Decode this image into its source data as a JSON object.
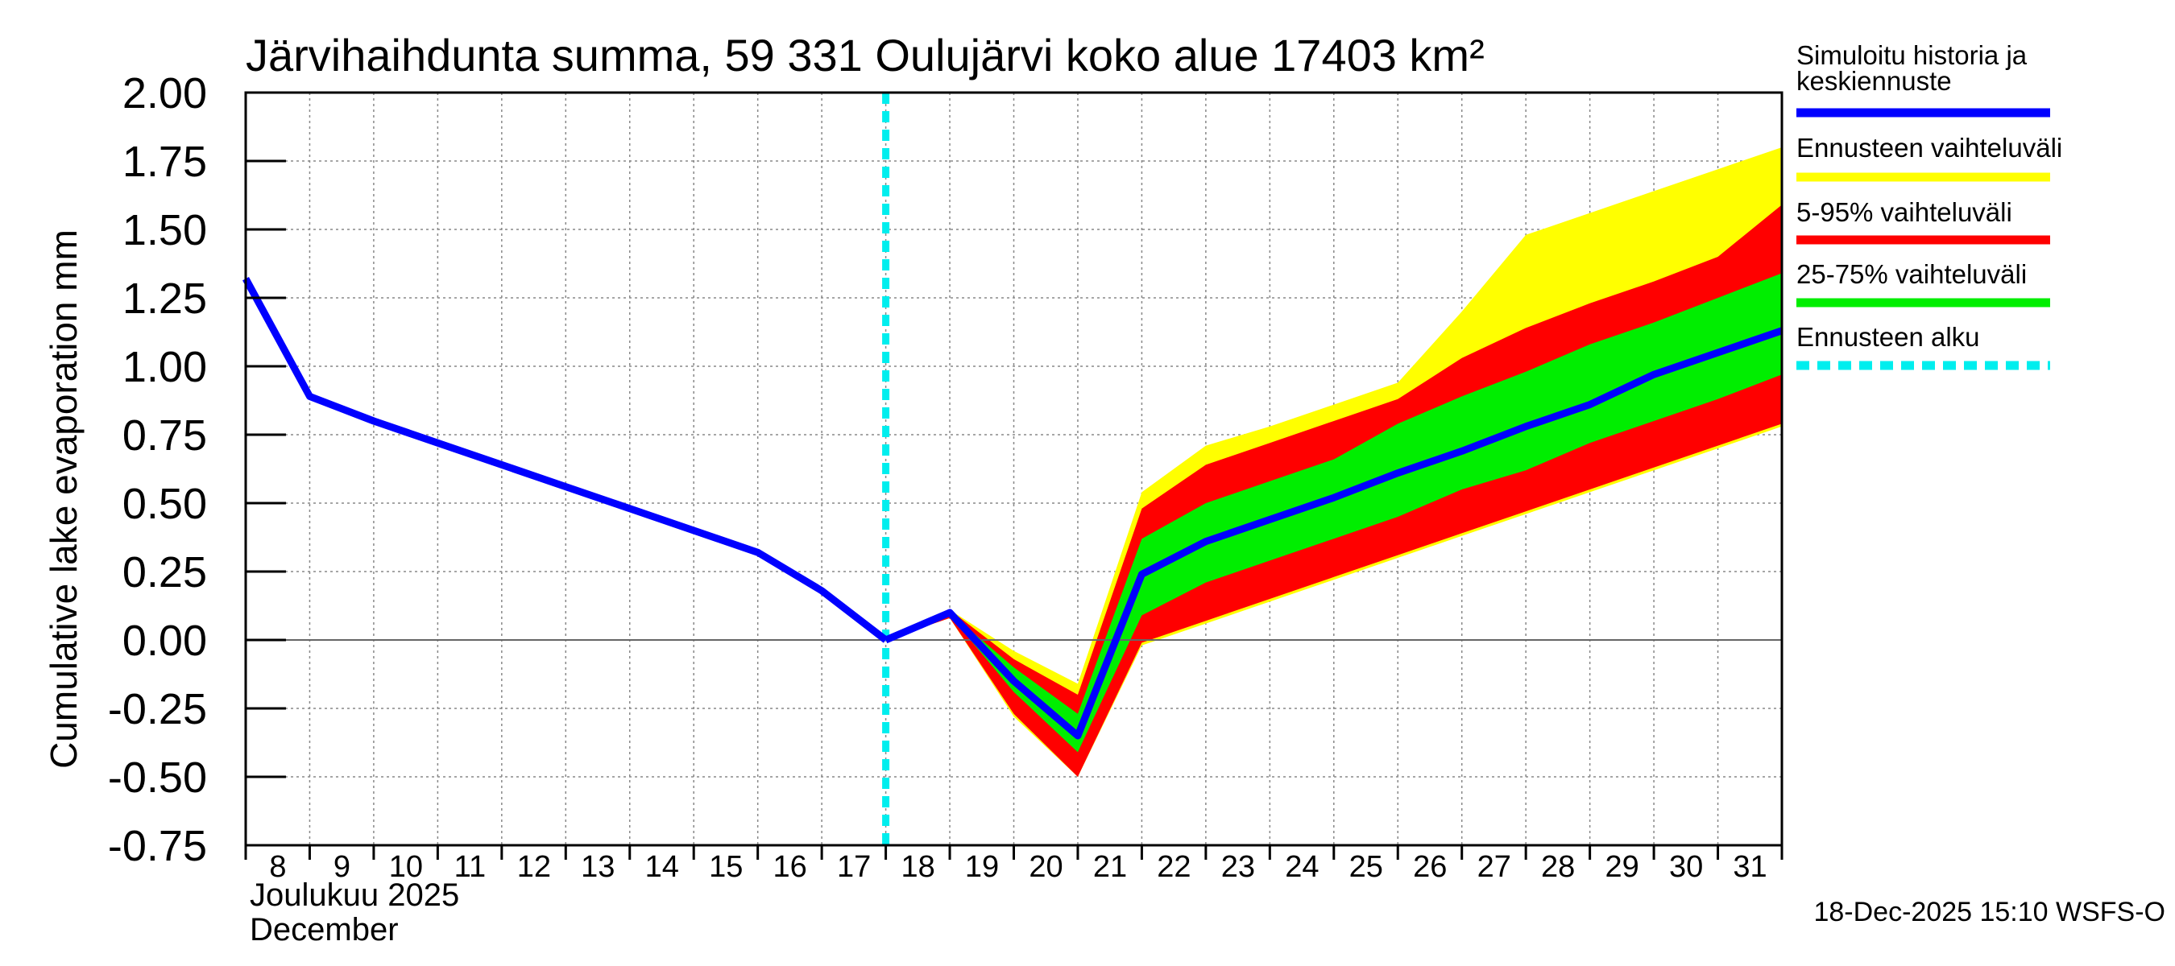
{
  "chart_data": {
    "type": "area",
    "title": "Järvihaihdunta summa, 59 331 Oulujärvi koko alue 17403 km²",
    "ylabel": "Cumulative lake evaporation   mm",
    "ylim": [
      -0.75,
      2.0
    ],
    "yticks": [
      "2.00",
      "1.75",
      "1.50",
      "1.25",
      "1.00",
      "0.75",
      "0.50",
      "0.25",
      "0.00",
      "-0.25",
      "-0.50",
      "-0.75"
    ],
    "ytick_values": [
      2.0,
      1.75,
      1.5,
      1.25,
      1.0,
      0.75,
      0.5,
      0.25,
      0.0,
      -0.25,
      -0.5,
      -0.75
    ],
    "xlim": [
      8,
      32
    ],
    "xtick_labels": [
      "8",
      "9",
      "10",
      "11",
      "12",
      "13",
      "14",
      "15",
      "16",
      "17",
      "18",
      "19",
      "20",
      "21",
      "22",
      "23",
      "24",
      "25",
      "26",
      "27",
      "28",
      "29",
      "30",
      "31"
    ],
    "month_label_fi": "Joulukuu  2025",
    "month_label_en": "December",
    "forecast_start": 18,
    "history": {
      "x": [
        8,
        9,
        10,
        11,
        12,
        13,
        14,
        15,
        16,
        17,
        18
      ],
      "y": [
        1.32,
        0.89,
        0.8,
        0.72,
        0.64,
        0.56,
        0.48,
        0.4,
        0.32,
        0.18,
        0.0
      ]
    },
    "forecast_median": {
      "x": [
        18,
        19,
        20,
        21,
        22,
        23,
        24,
        25,
        26,
        27,
        28,
        29,
        30,
        31,
        32
      ],
      "y": [
        0.0,
        0.1,
        -0.15,
        -0.35,
        0.24,
        0.36,
        0.44,
        0.52,
        0.61,
        0.69,
        0.78,
        0.86,
        0.97,
        1.05,
        1.13
      ]
    },
    "bands": [
      {
        "name": "Ennusteen vaihteluväli",
        "color": "#ffff00",
        "x": [
          18,
          19,
          20,
          21,
          22,
          23,
          24,
          25,
          26,
          27,
          28,
          29,
          30,
          31,
          32
        ],
        "upper": [
          0.0,
          0.11,
          -0.04,
          -0.16,
          0.54,
          0.71,
          0.78,
          0.86,
          0.94,
          1.2,
          1.48,
          1.56,
          1.64,
          1.72,
          1.8
        ],
        "lower": [
          0.0,
          0.08,
          -0.28,
          -0.5,
          -0.02,
          0.06,
          0.14,
          0.22,
          0.3,
          0.38,
          0.46,
          0.54,
          0.62,
          0.7,
          0.78
        ]
      },
      {
        "name": "5-95% vaihteluväli",
        "color": "#ff0000",
        "x": [
          18,
          19,
          20,
          21,
          22,
          23,
          24,
          25,
          26,
          27,
          28,
          29,
          30,
          31,
          32
        ],
        "upper": [
          0.0,
          0.11,
          -0.07,
          -0.2,
          0.48,
          0.64,
          0.72,
          0.8,
          0.88,
          1.03,
          1.14,
          1.23,
          1.31,
          1.4,
          1.59
        ],
        "lower": [
          0.0,
          0.08,
          -0.27,
          -0.5,
          -0.01,
          0.07,
          0.15,
          0.23,
          0.31,
          0.39,
          0.47,
          0.55,
          0.63,
          0.71,
          0.79
        ]
      },
      {
        "name": "25-75% vaihteluväli",
        "color": "#00ee00",
        "x": [
          18,
          19,
          20,
          21,
          22,
          23,
          24,
          25,
          26,
          27,
          28,
          29,
          30,
          31,
          32
        ],
        "upper": [
          0.0,
          0.1,
          -0.1,
          -0.27,
          0.37,
          0.5,
          0.58,
          0.66,
          0.79,
          0.89,
          0.98,
          1.08,
          1.16,
          1.25,
          1.34
        ],
        "lower": [
          0.0,
          0.09,
          -0.19,
          -0.41,
          0.09,
          0.21,
          0.29,
          0.37,
          0.45,
          0.55,
          0.62,
          0.72,
          0.8,
          0.88,
          0.97
        ]
      }
    ],
    "legend": [
      {
        "label": "Simuloitu historia ja",
        "label2": "keskiennuste",
        "color": "#0000ff",
        "style": "solid"
      },
      {
        "label": "Ennusteen vaihteluväli",
        "color": "#ffff00",
        "style": "solid"
      },
      {
        "label": "5-95% vaihteluväli",
        "color": "#ff0000",
        "style": "solid"
      },
      {
        "label": "25-75% vaihteluväli",
        "color": "#00ee00",
        "style": "solid"
      },
      {
        "label": "Ennusteen alku",
        "color": "#00eeee",
        "style": "dashed"
      }
    ],
    "colors": {
      "median": "#0000ff",
      "forecast_start": "#00eeee",
      "grid": "#888888"
    }
  },
  "footer": "18-Dec-2025 15:10 WSFS-O"
}
